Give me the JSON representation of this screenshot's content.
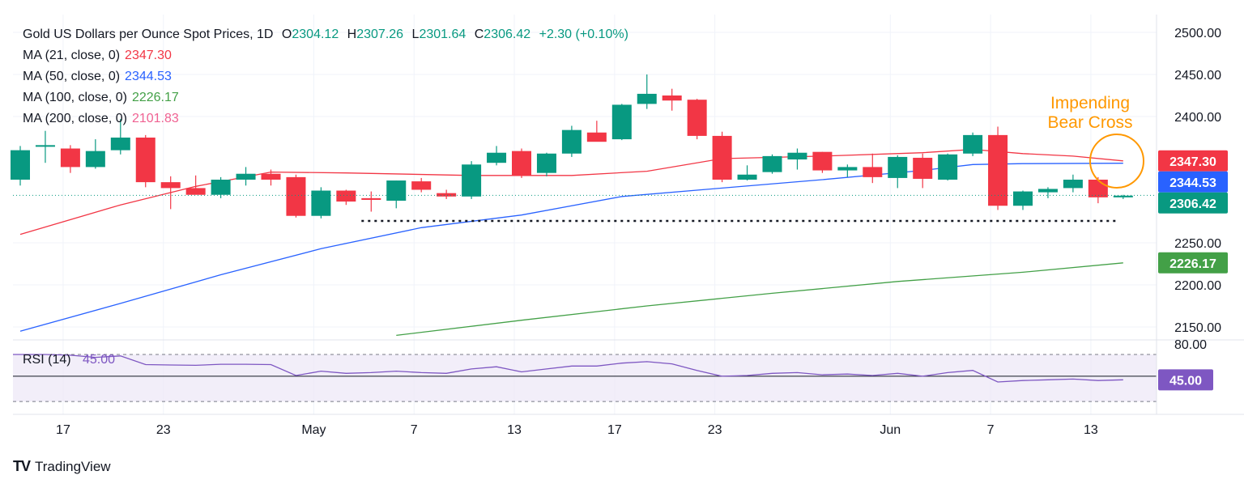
{
  "header": {
    "symbol": "Gold US Dollars per Ounce Spot Prices, 1D",
    "open_label": "O",
    "open": "2304.12",
    "high_label": "H",
    "high": "2307.26",
    "low_label": "L",
    "low": "2301.64",
    "close_label": "C",
    "close": "2306.42",
    "change": "+2.30 (+0.10%)",
    "ohlc_color": "#089981"
  },
  "moving_averages": [
    {
      "label": "MA (21, close, 0)",
      "value": "2347.30",
      "color": "#f23645"
    },
    {
      "label": "MA (50, close, 0)",
      "value": "2344.53",
      "color": "#2962ff"
    },
    {
      "label": "MA (100, close, 0)",
      "value": "2226.17",
      "color": "#43a047"
    },
    {
      "label": "MA (200, close, 0)",
      "value": "2101.83",
      "color": "#f06292"
    }
  ],
  "annotation": {
    "line1": "Impending",
    "line2": "Bear Cross",
    "color": "#ff9800"
  },
  "rsi": {
    "label": "RSI (14)",
    "value": "45.00",
    "upper": "80.00",
    "level": 45,
    "color": "#7e57c2"
  },
  "watermark": {
    "logo": "TV",
    "text": "TradingView"
  },
  "chart_data": {
    "type": "candlestick",
    "y_ticks": [
      "2500.00",
      "2450.00",
      "2400.00",
      "2250.00",
      "2200.00",
      "2150.00"
    ],
    "ylim": [
      2140,
      2515
    ],
    "x_ticks": [
      {
        "label": "17",
        "day": 1
      },
      {
        "label": "23",
        "day": 5
      },
      {
        "label": "May",
        "day": 11
      },
      {
        "label": "7",
        "day": 15
      },
      {
        "label": "13",
        "day": 19
      },
      {
        "label": "17",
        "day": 23
      },
      {
        "label": "23",
        "day": 27
      },
      {
        "label": "Jun",
        "day": 34
      },
      {
        "label": "7",
        "day": 38
      },
      {
        "label": "13",
        "day": 42
      }
    ],
    "price_tags": [
      {
        "value": "2347.30",
        "color": "#f23645",
        "y": 2347.3
      },
      {
        "value": "2344.53",
        "color": "#2962ff",
        "y": 2344.53
      },
      {
        "value": "2306.42",
        "color": "#089981",
        "y": 2306.42
      },
      {
        "value": "2226.17",
        "color": "#43a047",
        "y": 2226.17
      }
    ],
    "up_color": "#089981",
    "down_color": "#f23645",
    "candles": [
      [
        2325,
        2365,
        2318,
        2360
      ],
      [
        2365,
        2383,
        2345,
        2366
      ],
      [
        2362,
        2366,
        2333,
        2340
      ],
      [
        2340,
        2373,
        2338,
        2359
      ],
      [
        2360,
        2397,
        2355,
        2375
      ],
      [
        2375,
        2378,
        2316,
        2322
      ],
      [
        2322,
        2329,
        2290,
        2315
      ],
      [
        2315,
        2330,
        2310,
        2307
      ],
      [
        2307,
        2328,
        2303,
        2325
      ],
      [
        2325,
        2340,
        2318,
        2332
      ],
      [
        2332,
        2337,
        2318,
        2325
      ],
      [
        2328,
        2331,
        2280,
        2282
      ],
      [
        2282,
        2316,
        2279,
        2312
      ],
      [
        2312,
        2313,
        2295,
        2299
      ],
      [
        2303,
        2311,
        2287,
        2301
      ],
      [
        2300,
        2324,
        2291,
        2324
      ],
      [
        2323,
        2327,
        2310,
        2313
      ],
      [
        2309,
        2313,
        2302,
        2305
      ],
      [
        2305,
        2347,
        2302,
        2343
      ],
      [
        2345,
        2365,
        2342,
        2357
      ],
      [
        2359,
        2362,
        2327,
        2330
      ],
      [
        2333,
        2357,
        2329,
        2356
      ],
      [
        2356,
        2389,
        2352,
        2384
      ],
      [
        2381,
        2395,
        2371,
        2370
      ],
      [
        2373,
        2415,
        2372,
        2414
      ],
      [
        2415,
        2450,
        2409,
        2427
      ],
      [
        2425,
        2433,
        2407,
        2419
      ],
      [
        2420,
        2421,
        2373,
        2377
      ],
      [
        2377,
        2382,
        2322,
        2325
      ],
      [
        2325,
        2342,
        2324,
        2331
      ],
      [
        2334,
        2355,
        2332,
        2353
      ],
      [
        2349,
        2362,
        2337,
        2357
      ],
      [
        2358,
        2358,
        2333,
        2336
      ],
      [
        2336,
        2343,
        2328,
        2340
      ],
      [
        2340,
        2356,
        2321,
        2328
      ],
      [
        2327,
        2354,
        2315,
        2352
      ],
      [
        2351,
        2356,
        2315,
        2326
      ],
      [
        2325,
        2356,
        2324,
        2355
      ],
      [
        2356,
        2381,
        2353,
        2378
      ],
      [
        2378,
        2388,
        2289,
        2294
      ],
      [
        2294,
        2312,
        2289,
        2311
      ],
      [
        2310,
        2316,
        2303,
        2314
      ],
      [
        2315,
        2331,
        2310,
        2325
      ],
      [
        2325,
        2328,
        2297,
        2304
      ],
      [
        2304,
        2307,
        2302,
        2306
      ]
    ],
    "ma21": [
      [
        0,
        2260
      ],
      [
        4,
        2295
      ],
      [
        7,
        2317
      ],
      [
        10,
        2334
      ],
      [
        13,
        2333
      ],
      [
        18,
        2330
      ],
      [
        22,
        2330
      ],
      [
        25,
        2335
      ],
      [
        28,
        2350
      ],
      [
        32,
        2353
      ],
      [
        36,
        2357
      ],
      [
        38,
        2361
      ],
      [
        40,
        2356
      ],
      [
        42,
        2353
      ],
      [
        44,
        2347.3
      ]
    ],
    "ma50": [
      [
        0,
        2145
      ],
      [
        4,
        2178
      ],
      [
        8,
        2212
      ],
      [
        12,
        2243
      ],
      [
        16,
        2268
      ],
      [
        20,
        2283
      ],
      [
        24,
        2305
      ],
      [
        28,
        2315
      ],
      [
        32,
        2325
      ],
      [
        36,
        2336
      ],
      [
        38,
        2343
      ],
      [
        40,
        2344
      ],
      [
        44,
        2344.53
      ]
    ],
    "ma100": [
      [
        15,
        2140
      ],
      [
        20,
        2158
      ],
      [
        25,
        2175
      ],
      [
        30,
        2190
      ],
      [
        35,
        2204
      ],
      [
        40,
        2215
      ],
      [
        44,
        2226.17
      ]
    ],
    "support_level": 2276,
    "rsi_values": [
      80,
      80,
      79,
      76,
      78,
      66,
      65.5,
      65,
      66.5,
      66.5,
      66,
      51,
      57,
      54,
      55,
      57,
      55,
      54,
      60,
      63,
      56,
      60,
      64,
      64,
      68,
      70,
      67,
      58,
      50,
      51,
      54,
      55,
      52,
      53,
      51,
      54,
      50,
      55,
      58,
      42,
      44,
      45,
      46,
      44,
      45
    ]
  }
}
